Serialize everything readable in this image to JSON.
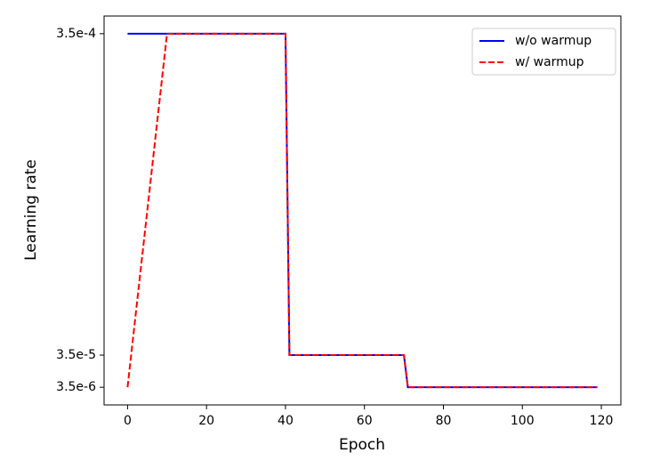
{
  "chart_data": {
    "type": "line",
    "xlabel": "Epoch",
    "ylabel": "Learning rate",
    "xlim": [
      -5.95,
      124.95
    ],
    "ylim": [
      -1.3825e-05,
      0.000367325
    ],
    "xticks": [
      0,
      20,
      40,
      60,
      80,
      100,
      120
    ],
    "yticks": [
      {
        "value": 3.5e-06,
        "label": "3.5e-6"
      },
      {
        "value": 3.5e-05,
        "label": "3.5e-5"
      },
      {
        "value": 0.00035,
        "label": "3.5e-4"
      }
    ],
    "legend": "upper right",
    "series": [
      {
        "name": "w/o warmup",
        "color": "#0000ff",
        "style": "solid",
        "x": [
          0,
          40,
          41,
          70,
          71,
          119
        ],
        "values": [
          0.00035,
          0.00035,
          3.5e-05,
          3.5e-05,
          3.5e-06,
          3.5e-06
        ]
      },
      {
        "name": "w/ warmup",
        "color": "#ff0000",
        "style": "dashed",
        "x": [
          0,
          10,
          40,
          41,
          70,
          71,
          119
        ],
        "values": [
          3.5e-06,
          0.00035,
          0.00035,
          3.5e-05,
          3.5e-05,
          3.5e-06,
          3.5e-06
        ]
      }
    ]
  }
}
